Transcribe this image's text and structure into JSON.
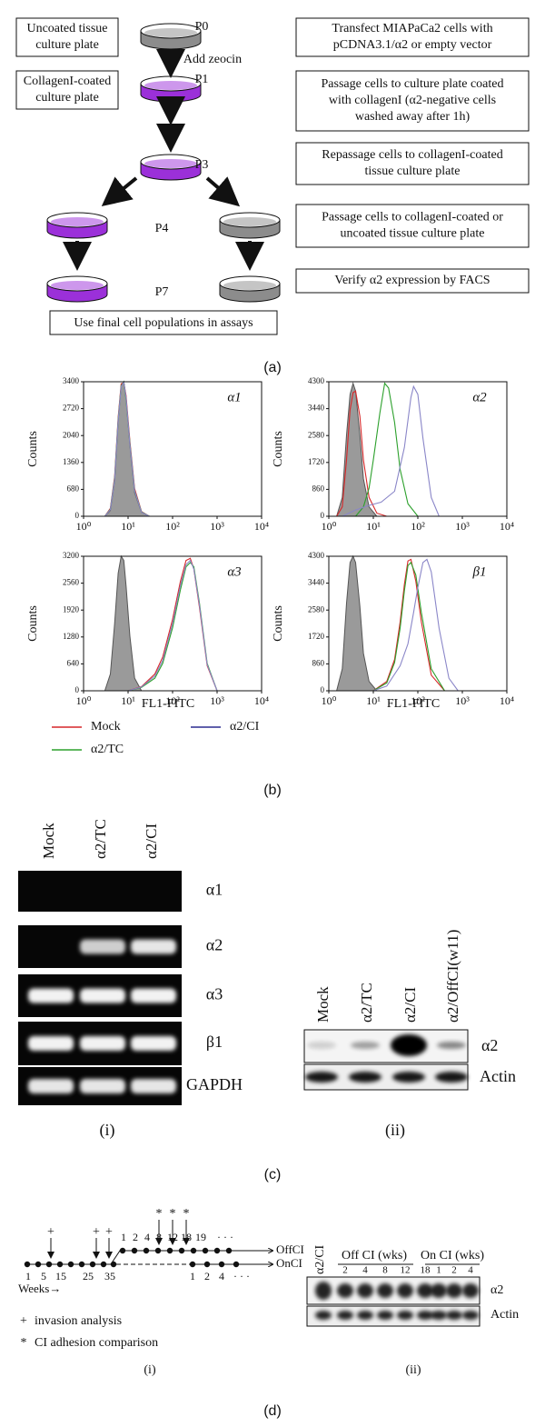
{
  "panel_a": {
    "left_boxes": [
      [
        "Uncoated tissue",
        "culture plate"
      ],
      [
        "CollagenI-coated",
        "culture plate"
      ]
    ],
    "plate_labels": [
      "P0",
      "P1",
      "P3",
      "P4",
      "P7"
    ],
    "arrow_label": "Add zeocin",
    "steps": [
      [
        "Transfect MIAPaCa2 cells with",
        "pCDNA3.1/α2 or empty vector"
      ],
      [
        "Passage cells to culture plate coated",
        "with collagenI (α2-negative cells",
        "washed away after 1h)"
      ],
      [
        "Repassage cells to collagenI-coated",
        "tissue culture plate"
      ],
      [
        "Passage cells to collagenI-coated or",
        "uncoated tissue culture plate"
      ],
      [
        "Verify α2 expression by FACS"
      ]
    ],
    "final_box": "Use final cell populations in assays",
    "caption": "(a)"
  },
  "chart_data": [
    {
      "type": "line",
      "title": "α1",
      "y_label": "Counts",
      "log_x": true,
      "xlim": [
        1,
        10000
      ],
      "xticks": [
        {
          "value": 1,
          "label": "10⁰"
        },
        {
          "value": 10,
          "label": "10¹"
        },
        {
          "value": 100,
          "label": "10²"
        },
        {
          "value": 1000,
          "label": "10³"
        },
        {
          "value": 10000,
          "label": "10⁴"
        }
      ],
      "ylim": [
        0,
        3400
      ],
      "yticks": [
        0,
        680,
        1360,
        2040,
        2720,
        3400
      ],
      "series": [
        {
          "color": "#555555",
          "filled": true,
          "x": [
            3,
            4,
            5,
            6,
            7,
            8,
            9,
            11,
            14,
            20,
            30
          ],
          "values": [
            0,
            150,
            900,
            2400,
            3300,
            3400,
            3000,
            1800,
            600,
            100,
            0
          ]
        },
        {
          "color": "#d62728",
          "x": [
            3,
            4,
            5,
            6,
            7,
            8,
            9,
            11,
            14,
            20,
            30
          ],
          "values": [
            0,
            200,
            1000,
            2500,
            3350,
            3380,
            3050,
            1900,
            700,
            120,
            0
          ]
        },
        {
          "color": "#2ca02c",
          "x": [
            3,
            4,
            5,
            6,
            7,
            8,
            9,
            11,
            14,
            20,
            30
          ],
          "values": [
            0,
            180,
            950,
            2450,
            3300,
            3400,
            2950,
            1850,
            650,
            110,
            0
          ]
        },
        {
          "color": "#8a86c8",
          "x": [
            3,
            4,
            5,
            6,
            7,
            8,
            9,
            11,
            14,
            20,
            30
          ],
          "values": [
            0,
            170,
            920,
            2420,
            3280,
            3390,
            3000,
            1820,
            640,
            100,
            0
          ]
        }
      ]
    },
    {
      "type": "line",
      "title": "α2",
      "y_label": "Counts",
      "log_x": true,
      "xlim": [
        1,
        10000
      ],
      "xticks": [
        {
          "value": 1,
          "label": "10⁰"
        },
        {
          "value": 10,
          "label": "10¹"
        },
        {
          "value": 100,
          "label": "10²"
        },
        {
          "value": 1000,
          "label": "10³"
        },
        {
          "value": 10000,
          "label": "10⁴"
        }
      ],
      "ylim": [
        0,
        4300
      ],
      "yticks": [
        0,
        860,
        1720,
        2580,
        3440,
        4300
      ],
      "series": [
        {
          "color": "#555555",
          "filled": true,
          "x": [
            1.5,
            2,
            2.5,
            3,
            3.5,
            4,
            5,
            6,
            8,
            12
          ],
          "values": [
            0,
            600,
            2600,
            3900,
            4250,
            4000,
            2600,
            1200,
            300,
            0
          ]
        },
        {
          "color": "#d62728",
          "x": [
            1.5,
            2,
            2.5,
            3,
            3.5,
            4,
            5,
            6,
            8,
            12,
            20
          ],
          "values": [
            0,
            300,
            1800,
            3400,
            3950,
            4000,
            3200,
            1800,
            600,
            100,
            0
          ]
        },
        {
          "color": "#2ca02c",
          "x": [
            4,
            6,
            8,
            10,
            14,
            18,
            22,
            30,
            40,
            60,
            100
          ],
          "values": [
            0,
            300,
            900,
            1800,
            3300,
            4250,
            4100,
            3000,
            1500,
            400,
            0
          ]
        },
        {
          "color": "#8a86c8",
          "x": [
            2,
            4,
            8,
            15,
            30,
            50,
            70,
            80,
            100,
            130,
            200,
            300
          ],
          "values": [
            0,
            200,
            350,
            450,
            800,
            2200,
            3800,
            4150,
            3900,
            2500,
            600,
            0
          ]
        }
      ]
    },
    {
      "type": "line",
      "title": "α3",
      "y_label": "Counts",
      "x_label": "FL1-FITC",
      "log_x": true,
      "xlim": [
        1,
        10000
      ],
      "xticks": [
        {
          "value": 1,
          "label": "10⁰"
        },
        {
          "value": 10,
          "label": "10¹"
        },
        {
          "value": 100,
          "label": "10²"
        },
        {
          "value": 1000,
          "label": "10³"
        },
        {
          "value": 10000,
          "label": "10⁴"
        }
      ],
      "ylim": [
        0,
        3200
      ],
      "yticks": [
        0,
        640,
        1280,
        1920,
        2560,
        3200
      ],
      "series": [
        {
          "color": "#555555",
          "filled": true,
          "x": [
            3,
            4,
            5,
            6,
            7,
            8,
            9,
            11,
            14,
            20
          ],
          "values": [
            0,
            400,
            1600,
            2800,
            3200,
            3100,
            2500,
            1300,
            300,
            0
          ]
        },
        {
          "color": "#d62728",
          "x": [
            10,
            20,
            40,
            60,
            100,
            150,
            200,
            250,
            300,
            400,
            600,
            1000
          ],
          "values": [
            0,
            100,
            400,
            800,
            1700,
            2600,
            3100,
            3150,
            2900,
            2000,
            600,
            0
          ]
        },
        {
          "color": "#2ca02c",
          "x": [
            10,
            20,
            40,
            60,
            100,
            150,
            200,
            250,
            300,
            400,
            600,
            1000
          ],
          "values": [
            0,
            80,
            300,
            650,
            1500,
            2400,
            2950,
            3050,
            2950,
            2100,
            650,
            0
          ]
        },
        {
          "color": "#8a86c8",
          "x": [
            10,
            20,
            40,
            60,
            100,
            150,
            200,
            250,
            300,
            400,
            600,
            1000
          ],
          "values": [
            0,
            90,
            350,
            720,
            1600,
            2500,
            3000,
            3100,
            2900,
            2050,
            620,
            0
          ]
        }
      ]
    },
    {
      "type": "line",
      "title": "β1",
      "y_label": "Counts",
      "x_label": "FL1-FITC",
      "log_x": true,
      "xlim": [
        1,
        10000
      ],
      "xticks": [
        {
          "value": 1,
          "label": "10⁰"
        },
        {
          "value": 10,
          "label": "10¹"
        },
        {
          "value": 100,
          "label": "10²"
        },
        {
          "value": 1000,
          "label": "10³"
        },
        {
          "value": 10000,
          "label": "10⁴"
        }
      ],
      "ylim": [
        0,
        4300
      ],
      "yticks": [
        0,
        860,
        1720,
        2580,
        3440,
        4300
      ],
      "series": [
        {
          "color": "#555555",
          "filled": true,
          "x": [
            1.5,
            2,
            2.5,
            3,
            3.5,
            4,
            5,
            6,
            8,
            12
          ],
          "values": [
            0,
            700,
            2800,
            4100,
            4300,
            4100,
            2700,
            1200,
            300,
            0
          ]
        },
        {
          "color": "#d62728",
          "x": [
            10,
            20,
            30,
            40,
            50,
            60,
            70,
            90,
            120,
            200,
            400
          ],
          "values": [
            0,
            300,
            1000,
            2200,
            3400,
            4150,
            4200,
            3500,
            2200,
            500,
            0
          ]
        },
        {
          "color": "#2ca02c",
          "x": [
            10,
            20,
            30,
            40,
            50,
            60,
            70,
            90,
            120,
            200,
            400
          ],
          "values": [
            0,
            250,
            900,
            2000,
            3200,
            4000,
            4100,
            3700,
            2500,
            700,
            0
          ]
        },
        {
          "color": "#8a86c8",
          "x": [
            10,
            20,
            40,
            60,
            80,
            100,
            130,
            160,
            200,
            300,
            500,
            800
          ],
          "values": [
            0,
            150,
            800,
            1500,
            2500,
            3300,
            4100,
            4200,
            3800,
            2000,
            400,
            0
          ]
        }
      ]
    }
  ],
  "panel_b": {
    "legend": [
      {
        "name": "Mock",
        "color": "#d62728"
      },
      {
        "name": "α2/TC",
        "color": "#2ca02c"
      },
      {
        "name": "α2/CI",
        "color": "#2b2b8f"
      }
    ],
    "caption": "(b)"
  },
  "panel_c": {
    "gel_i": {
      "lanes": [
        "Mock",
        "α2/TC",
        "α2/CI"
      ],
      "rows": [
        "α1",
        "α2",
        "α3",
        "β1",
        "GAPDH"
      ],
      "caption": "(i)"
    },
    "blot_ii": {
      "lanes": [
        "Mock",
        "α2/TC",
        "α2/CI",
        "α2/OffCI(w11)"
      ],
      "rows": [
        "α2",
        "Actin"
      ],
      "caption": "(ii)"
    },
    "caption": "(c)"
  },
  "panel_d": {
    "timeline": {
      "invasion_symbol": "+",
      "adhesion_symbol": "*",
      "weeks_initial": [
        "1",
        "5",
        "15",
        "25",
        "35"
      ],
      "weeks_off": [
        "1",
        "2",
        "4",
        "8",
        "12",
        "18",
        "19",
        "· · ·"
      ],
      "weeks_on": [
        "1",
        "2",
        "4",
        "· · ·"
      ],
      "off_label": "OffCI",
      "on_label": "OnCI",
      "axis_label": "Weeks→",
      "legend": [
        "invasion analysis",
        "CI adhesion comparison"
      ],
      "caption": "(i)"
    },
    "blot_ii": {
      "lane_first": "α2/CI",
      "off_group": "Off CI (wks)",
      "off_weeks": [
        "2",
        "4",
        "8",
        "12",
        "18"
      ],
      "on_group": "On CI (wks)",
      "on_weeks": [
        "1",
        "2",
        "4"
      ],
      "rows": [
        "α2",
        "Actin"
      ],
      "caption": "(ii)"
    },
    "caption": "(d)"
  }
}
